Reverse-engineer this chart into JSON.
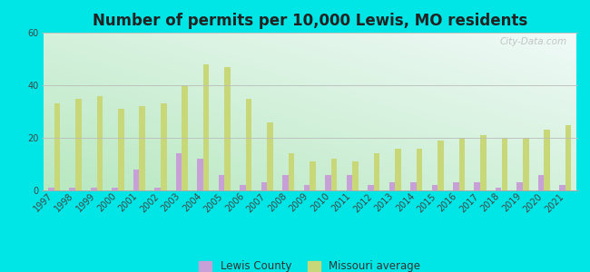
{
  "title": "Number of permits per 10,000 Lewis, MO residents",
  "years": [
    1997,
    1998,
    1999,
    2000,
    2001,
    2002,
    2003,
    2004,
    2005,
    2006,
    2007,
    2008,
    2009,
    2010,
    2011,
    2012,
    2013,
    2014,
    2015,
    2016,
    2017,
    2018,
    2019,
    2020,
    2021
  ],
  "lewis_county": [
    1,
    1,
    1,
    1,
    8,
    1,
    14,
    12,
    6,
    2,
    3,
    6,
    2,
    6,
    6,
    2,
    3,
    3,
    2,
    3,
    3,
    1,
    3,
    6,
    2
  ],
  "missouri_avg": [
    33,
    35,
    36,
    31,
    32,
    33,
    40,
    48,
    47,
    35,
    26,
    14,
    11,
    12,
    11,
    14,
    16,
    16,
    19,
    20,
    21,
    20,
    20,
    23,
    25
  ],
  "bar_width": 0.28,
  "lewis_color": "#c8a0d8",
  "mo_color": "#c8d878",
  "ylim": [
    0,
    60
  ],
  "yticks": [
    0,
    20,
    40,
    60
  ],
  "bg_color_bottom_left": "#b8e8c0",
  "bg_color_top_right": "#f0faf8",
  "outer_background": "#00e5e5",
  "grid_color": "#bbbbbb",
  "title_fontsize": 12,
  "tick_fontsize": 7,
  "watermark": "City-Data.com",
  "legend_labels": [
    "Lewis County",
    "Missouri average"
  ]
}
